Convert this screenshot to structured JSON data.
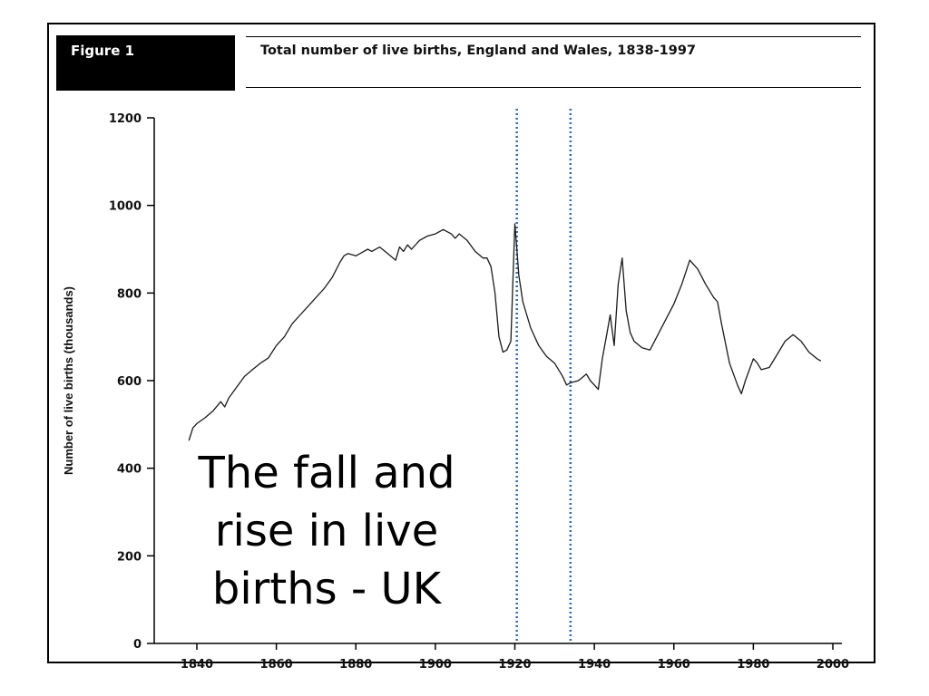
{
  "figure_label": "Figure 1",
  "overlay_caption": "The fall and rise in live births - UK",
  "chart_data": {
    "type": "line",
    "title": "Total number of live births, England and Wales, 1838-1997",
    "xlabel": "",
    "ylabel": "Number of live births (thousands)",
    "xlim": [
      1835,
      2000
    ],
    "ylim": [
      0,
      1200
    ],
    "x_ticks": [
      1840,
      1860,
      1880,
      1900,
      1920,
      1940,
      1960,
      1980,
      2000
    ],
    "y_ticks": [
      0,
      200,
      400,
      600,
      800,
      1000,
      1200
    ],
    "grid": false,
    "legend": "none",
    "reference_lines_x": [
      1920.5,
      1934
    ],
    "colors": {
      "line": "#1a1a1a",
      "reference": "#2e6ab5",
      "axis": "#000000"
    },
    "series": [
      {
        "x": [
          1838,
          1839,
          1840,
          1842,
          1844,
          1846,
          1847,
          1848,
          1850,
          1852,
          1854,
          1856,
          1858,
          1860,
          1862,
          1864,
          1866,
          1868,
          1870,
          1872,
          1874,
          1876,
          1877,
          1878,
          1880,
          1882,
          1883,
          1884,
          1886,
          1888,
          1890,
          1891,
          1892,
          1893,
          1894,
          1896,
          1898,
          1900,
          1902,
          1903,
          1904,
          1905,
          1906,
          1908,
          1910,
          1912,
          1913,
          1914,
          1915,
          1916,
          1917,
          1918,
          1919,
          1920,
          1920.5,
          1921,
          1922,
          1924,
          1926,
          1928,
          1930,
          1932,
          1933,
          1934,
          1936,
          1938,
          1939,
          1940,
          1941,
          1942,
          1943,
          1944,
          1945,
          1946,
          1947,
          1948,
          1949,
          1950,
          1952,
          1954,
          1956,
          1958,
          1960,
          1962,
          1964,
          1966,
          1968,
          1970,
          1971,
          1972,
          1974,
          1976,
          1977,
          1978,
          1980,
          1981,
          1982,
          1984,
          1986,
          1988,
          1990,
          1992,
          1994,
          1996,
          1997
        ],
        "y": [
          463,
          492,
          502,
          515,
          530,
          552,
          540,
          560,
          585,
          610,
          625,
          640,
          652,
          680,
          700,
          730,
          750,
          770,
          790,
          810,
          835,
          870,
          885,
          890,
          885,
          895,
          900,
          895,
          905,
          890,
          875,
          905,
          895,
          910,
          900,
          920,
          930,
          935,
          945,
          940,
          935,
          925,
          935,
          920,
          895,
          880,
          880,
          860,
          800,
          700,
          665,
          670,
          690,
          958,
          900,
          840,
          780,
          720,
          680,
          655,
          640,
          610,
          590,
          595,
          600,
          615,
          600,
          590,
          580,
          650,
          700,
          750,
          680,
          820,
          880,
          760,
          710,
          690,
          675,
          670,
          705,
          740,
          775,
          820,
          875,
          855,
          820,
          790,
          780,
          730,
          640,
          590,
          570,
          600,
          650,
          640,
          625,
          630,
          660,
          690,
          705,
          690,
          665,
          650,
          645
        ]
      }
    ]
  }
}
